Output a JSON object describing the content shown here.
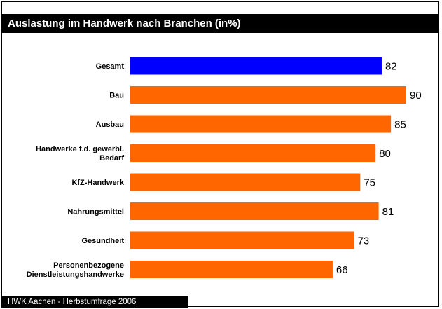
{
  "chart_data": {
    "type": "bar",
    "orientation": "horizontal",
    "title": "Auslastung im Handwerk nach Branchen (in%)",
    "categories": [
      "Gesamt",
      "Bau",
      "Ausbau",
      "Handwerke f.d. gewerbl. Bedarf",
      "KfZ-Handwerk",
      "Nahrungsmittel",
      "Gesundheit",
      "Personenbezogene Dienstleistungshandwerke"
    ],
    "category_lines": [
      [
        "Gesamt"
      ],
      [
        "Bau"
      ],
      [
        "Ausbau"
      ],
      [
        "Handwerke f.d. gewerbl.",
        "Bedarf"
      ],
      [
        "KfZ-Handwerk"
      ],
      [
        "Nahrungsmittel"
      ],
      [
        "Gesundheit"
      ],
      [
        "Personenbezogene",
        "Dienstleistungshandwerke"
      ]
    ],
    "values": [
      82,
      90,
      85,
      80,
      75,
      81,
      73,
      66
    ],
    "colors": [
      "#0000ff",
      "#ff6600",
      "#ff6600",
      "#ff6600",
      "#ff6600",
      "#ff6600",
      "#ff6600",
      "#ff6600"
    ],
    "xlabel": "",
    "ylabel": "",
    "xlim": [
      0,
      90
    ],
    "grid": false,
    "legend": false
  },
  "footer": {
    "source": "HWK Aachen - Herbstumfrage 2006"
  }
}
